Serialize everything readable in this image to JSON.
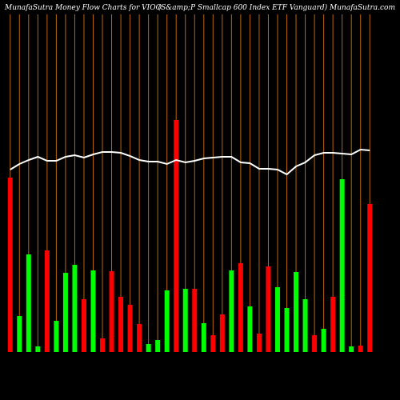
{
  "chart_data": {
    "type": "bar",
    "title": "MunafaSutra  Money Flow  Charts for VIOO",
    "subtitle": "(S&amp;P Smallcap 600  Index ETF Vanguard) MunafaSutra.com",
    "values": [
      218,
      45,
      122,
      7,
      127,
      39,
      99,
      109,
      66,
      102,
      17,
      101,
      69,
      59,
      35,
      10,
      15,
      77,
      290,
      79,
      79,
      36,
      21,
      47,
      102,
      111,
      57,
      23,
      107,
      81,
      55,
      100,
      66,
      21,
      29,
      69,
      216,
      7,
      8,
      185
    ],
    "colors": [
      "#ff0000",
      "#00ff00",
      "#00ff00",
      "#00ff00",
      "#ff0000",
      "#00ff00",
      "#00ff00",
      "#00ff00",
      "#ff0000",
      "#00ff00",
      "#ff0000",
      "#ff0000",
      "#ff0000",
      "#ff0000",
      "#ff0000",
      "#00ff00",
      "#00ff00",
      "#00ff00",
      "#ff0000",
      "#00ff00",
      "#ff0000",
      "#00ff00",
      "#ff0000",
      "#ff0000",
      "#00ff00",
      "#ff0000",
      "#00ff00",
      "#ff0000",
      "#ff0000",
      "#00ff00",
      "#00ff00",
      "#00ff00",
      "#00ff00",
      "#ff0000",
      "#00ff00",
      "#ff0000",
      "#00ff00",
      "#00ff00",
      "#ff0000",
      "#ff0000"
    ],
    "line_values": [
      228,
      235,
      240,
      244,
      239,
      239,
      244,
      246,
      243,
      247,
      250,
      250,
      249,
      245,
      240,
      238,
      238,
      235,
      240,
      237,
      239,
      242,
      243,
      244,
      244,
      237,
      236,
      229,
      229,
      228,
      222,
      232,
      237,
      246,
      249,
      249,
      248,
      247,
      253,
      252
    ],
    "line_color": "#ffffff",
    "grid_color": "#b8650b",
    "ylim": [
      0,
      300
    ]
  }
}
